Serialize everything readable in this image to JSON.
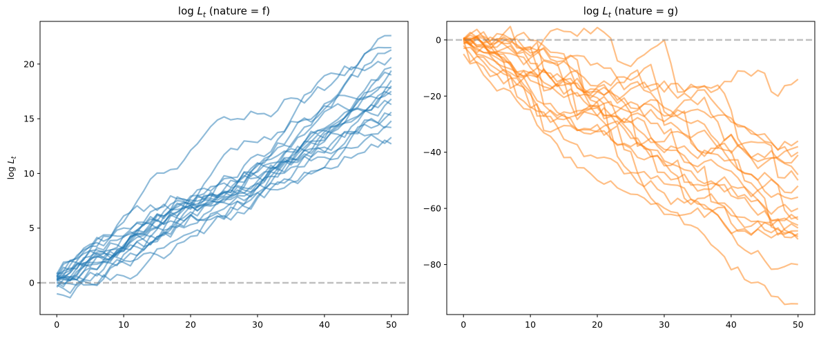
{
  "chart_data": [
    {
      "type": "line",
      "title": "log L_t (nature = f)",
      "title_parts": {
        "prefix": "log ",
        "var": "L",
        "sub": "t",
        "suffix": " (nature = f)"
      },
      "xlabel": "",
      "ylabel": "log L_t",
      "ylabel_parts": {
        "prefix": "log ",
        "var": "L",
        "sub": "t"
      },
      "xlim": [
        -2.5,
        52.5
      ],
      "ylim": [
        -2.9,
        23.9
      ],
      "xticks": [
        0,
        10,
        20,
        30,
        40,
        50
      ],
      "yticks": [
        0,
        5,
        10,
        15,
        20
      ],
      "reference_line": {
        "y": 0,
        "style": "dashed",
        "color": "#808080"
      },
      "series_color": "#1f77b4",
      "grid": false,
      "n_series": 20,
      "t_range": [
        0,
        50
      ],
      "series_endpoints": [
        {
          "start": 0.8,
          "end": 22.6
        },
        {
          "start": 0.5,
          "end": 21.5
        },
        {
          "start": 0.6,
          "end": 21.3
        },
        {
          "start": 0.3,
          "end": 20.6
        },
        {
          "start": 0.2,
          "end": 19.7
        },
        {
          "start": 0.4,
          "end": 19.4
        },
        {
          "start": 0.0,
          "end": 19.0
        },
        {
          "start": 0.6,
          "end": 18.5
        },
        {
          "start": 0.3,
          "end": 18.0
        },
        {
          "start": 0.9,
          "end": 17.8
        },
        {
          "start": -0.4,
          "end": 17.2
        },
        {
          "start": 0.5,
          "end": 16.8
        },
        {
          "start": 0.2,
          "end": 16.3
        },
        {
          "start": -1.0,
          "end": 15.6
        },
        {
          "start": 0.7,
          "end": 15.3
        },
        {
          "start": 0.1,
          "end": 14.8
        },
        {
          "start": 0.4,
          "end": 14.2
        },
        {
          "start": -0.2,
          "end": 13.3
        },
        {
          "start": 0.6,
          "end": 12.7
        },
        {
          "start": 0.3,
          "end": 17.5
        }
      ]
    },
    {
      "type": "line",
      "title": "log L_t (nature = g)",
      "title_parts": {
        "prefix": "log ",
        "var": "L",
        "sub": "t",
        "suffix": " (nature = g)"
      },
      "xlabel": "",
      "ylabel": "",
      "xlim": [
        -2.5,
        52.5
      ],
      "ylim": [
        -97.8,
        6.6
      ],
      "xticks": [
        0,
        10,
        20,
        30,
        40,
        50
      ],
      "yticks": [
        0,
        -20,
        -40,
        -60,
        -80
      ],
      "reference_line": {
        "y": 0,
        "style": "dashed",
        "color": "#808080"
      },
      "series_color": "#ff7f0e",
      "grid": false,
      "n_series": 20,
      "t_range": [
        0,
        50
      ],
      "series_endpoints": [
        {
          "start": 0.5,
          "end": -14.0
        },
        {
          "start": 0.3,
          "end": -36.0
        },
        {
          "start": 0.8,
          "end": -38.0
        },
        {
          "start": -0.5,
          "end": -40.0
        },
        {
          "start": 0.2,
          "end": -41.0
        },
        {
          "start": 0.0,
          "end": -48.0
        },
        {
          "start": 0.6,
          "end": -50.0
        },
        {
          "start": -1.5,
          "end": -56.0
        },
        {
          "start": 0.4,
          "end": -60.0
        },
        {
          "start": 0.1,
          "end": -63.0
        },
        {
          "start": -3.0,
          "end": -64.0
        },
        {
          "start": 0.7,
          "end": -66.0
        },
        {
          "start": 0.2,
          "end": -67.0
        },
        {
          "start": -5.0,
          "end": -68.0
        },
        {
          "start": 0.3,
          "end": -69.0
        },
        {
          "start": 0.5,
          "end": -70.0
        },
        {
          "start": -1.0,
          "end": -71.0
        },
        {
          "start": 0.1,
          "end": -80.0
        },
        {
          "start": -2.0,
          "end": -94.0
        },
        {
          "start": 0.4,
          "end": -52.0
        }
      ]
    }
  ]
}
